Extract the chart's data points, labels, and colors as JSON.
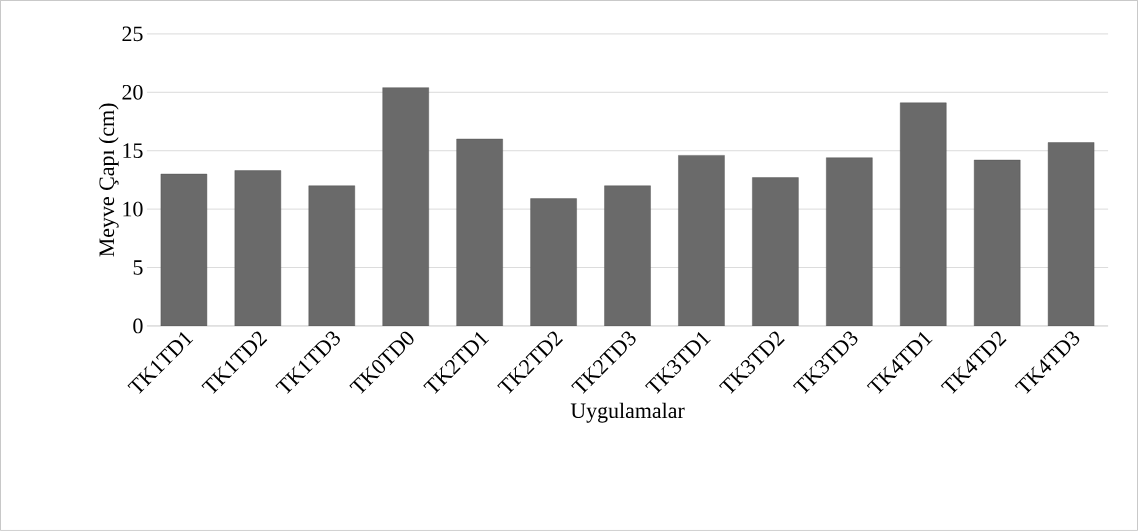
{
  "chart_data": {
    "type": "bar",
    "xlabel": "Uygulamalar",
    "ylabel": "Meyve Çapı (cm)",
    "categories": [
      "TK1TD1",
      "TK1TD2",
      "TK1TD3",
      "TK0TD0",
      "TK2TD1",
      "TK2TD2",
      "TK2TD3",
      "TK3TD1",
      "TK3TD2",
      "TK3TD3",
      "TK4TD1",
      "TK4TD2",
      "TK4TD3"
    ],
    "values": [
      13.0,
      13.3,
      12.0,
      20.4,
      16.0,
      10.9,
      12.0,
      14.6,
      12.7,
      14.4,
      19.1,
      14.2,
      15.7
    ],
    "color": "#6a6a6a",
    "ylim": [
      0,
      25
    ],
    "yticks": [
      0,
      5,
      10,
      15,
      20,
      25
    ],
    "grid": "y",
    "legend": false
  }
}
